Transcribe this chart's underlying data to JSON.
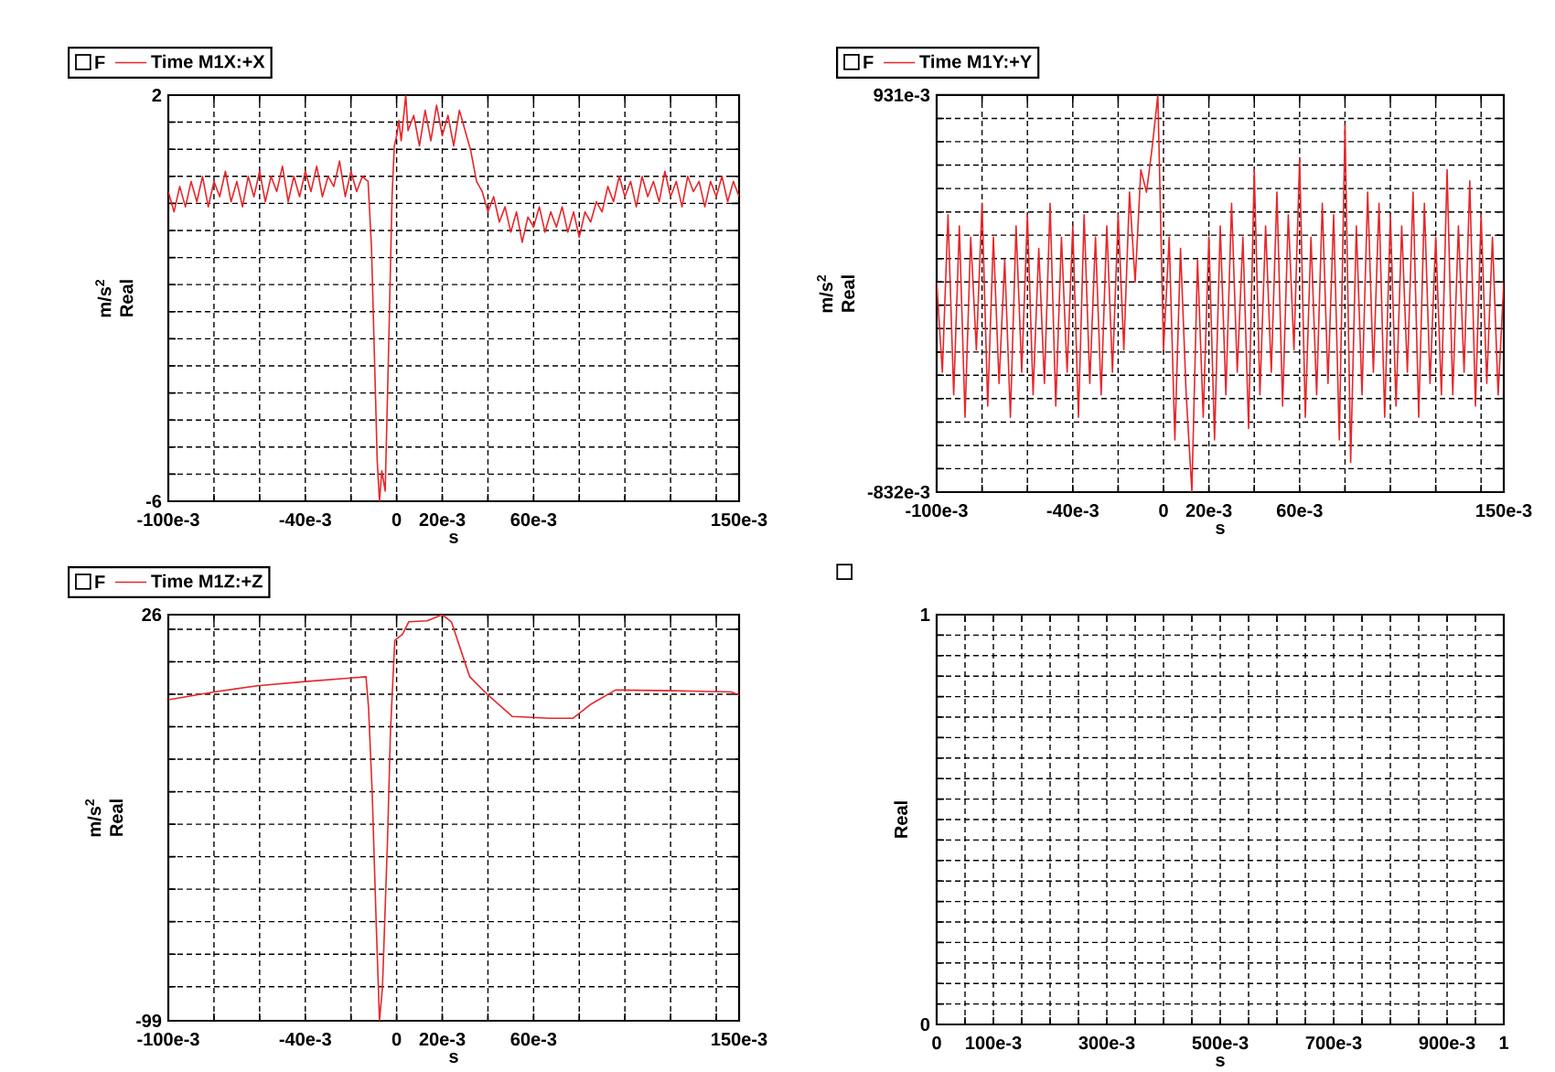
{
  "chart_data": [
    {
      "type": "line",
      "legend_title": "F",
      "xlabel": "s",
      "ylabel": "m/s$^{2}$ Real",
      "grid": true,
      "legend": "top left",
      "x": [
        -0.1,
        -0.0975,
        -0.095,
        -0.0925,
        -0.09,
        -0.0875,
        -0.085,
        -0.0825,
        -0.08,
        -0.0775,
        -0.075,
        -0.0725,
        -0.07,
        -0.0675,
        -0.065,
        -0.0625,
        -0.06,
        -0.0575,
        -0.055,
        -0.0525,
        -0.05,
        -0.0475,
        -0.045,
        -0.0425,
        -0.04,
        -0.0375,
        -0.035,
        -0.0325,
        -0.03,
        -0.0275,
        -0.025,
        -0.0225,
        -0.02,
        -0.0175,
        -0.015,
        -0.0125,
        -0.011,
        -0.0095,
        -0.0085,
        -0.0075,
        -0.0065,
        -0.005,
        -0.0035,
        -0.002,
        -0.001,
        0,
        0.001,
        0.002,
        0.004,
        0.005,
        0.0075,
        0.01,
        0.0125,
        0.015,
        0.0175,
        0.02,
        0.0225,
        0.025,
        0.0275,
        0.03,
        0.0325,
        0.035,
        0.0375,
        0.04,
        0.0425,
        0.045,
        0.0475,
        0.05,
        0.0525,
        0.055,
        0.0575,
        0.06,
        0.0625,
        0.065,
        0.0675,
        0.07,
        0.0725,
        0.075,
        0.0775,
        0.08,
        0.0825,
        0.085,
        0.0875,
        0.09,
        0.0925,
        0.095,
        0.0975,
        0.1,
        0.1025,
        0.105,
        0.1075,
        0.11,
        0.1125,
        0.115,
        0.1175,
        0.12,
        0.1225,
        0.125,
        0.1275,
        0.13,
        0.1325,
        0.135,
        0.1375,
        0.14,
        0.1425,
        0.145,
        0.1475,
        0.15
      ],
      "series": [
        {
          "name": "Time M1X:+X",
          "color": "#e8262a",
          "values": [
            0.1,
            -0.3,
            0.2,
            -0.2,
            0.3,
            -0.1,
            0.4,
            -0.2,
            0.3,
            0.0,
            0.5,
            -0.1,
            0.3,
            -0.2,
            0.4,
            0.0,
            0.5,
            -0.1,
            0.4,
            0.1,
            0.6,
            -0.1,
            0.4,
            0.0,
            0.5,
            0.1,
            0.6,
            0.0,
            0.4,
            0.2,
            0.7,
            0.0,
            0.5,
            0.1,
            0.4,
            0.3,
            -1.0,
            -3.5,
            -5.2,
            -6,
            -5.4,
            -5.8,
            -3.0,
            0.0,
            1.0,
            1.2,
            1.5,
            1.1,
            2,
            1.3,
            1.6,
            1.0,
            1.7,
            1.1,
            1.8,
            1.2,
            1.6,
            1.0,
            1.7,
            1.3,
            0.9,
            0.3,
            0.1,
            -0.3,
            0.0,
            -0.5,
            -0.2,
            -0.7,
            -0.3,
            -0.9,
            -0.4,
            -0.6,
            -0.2,
            -0.7,
            -0.3,
            -0.6,
            -0.2,
            -0.7,
            -0.3,
            -0.8,
            -0.3,
            -0.5,
            -0.1,
            -0.3,
            0.2,
            -0.1,
            0.4,
            0.0,
            0.3,
            -0.2,
            0.4,
            0.0,
            0.3,
            -0.1,
            0.5,
            0.0,
            0.3,
            -0.2,
            0.4,
            0.1,
            0.3,
            -0.2,
            0.3,
            0.0,
            0.4,
            -0.1,
            0.3,
            0.0
          ]
        }
      ],
      "xlim": [
        -0.1,
        0.15
      ],
      "ylim": [
        -6,
        2
      ],
      "xticks": [
        {
          "value": -0.1,
          "label": "-100e-3"
        },
        {
          "value": -0.08,
          "label": null
        },
        {
          "value": -0.06,
          "label": null
        },
        {
          "value": -0.04,
          "label": "-40e-3"
        },
        {
          "value": -0.02,
          "label": null
        },
        0,
        {
          "value": 0.02,
          "label": "20e-3"
        },
        {
          "value": 0.04,
          "label": null
        },
        {
          "value": 0.06,
          "label": "60e-3"
        },
        {
          "value": 0.08,
          "label": null
        },
        {
          "value": 0.1,
          "label": null
        },
        {
          "value": 0.12,
          "label": null
        },
        {
          "value": 0.14,
          "label": null
        },
        {
          "value": 0.15,
          "label": "150e-3"
        }
      ],
      "yticks": [
        -6,
        {
          "value": -5.467,
          "label": null
        },
        {
          "value": -4.933,
          "label": null
        },
        {
          "value": -4.4,
          "label": null
        },
        {
          "value": -3.867,
          "label": null
        },
        {
          "value": -3.333,
          "label": null
        },
        {
          "value": -2.8,
          "label": null
        },
        {
          "value": -2.267,
          "label": null
        },
        {
          "value": -1.733,
          "label": null
        },
        {
          "value": -1.2,
          "label": null
        },
        {
          "value": -0.667,
          "label": null
        },
        {
          "value": -0.133,
          "label": null
        },
        {
          "value": 0.4,
          "label": null
        },
        {
          "value": 0.933,
          "label": null
        },
        {
          "value": 1.467,
          "label": null
        },
        2
      ]
    },
    {
      "type": "line",
      "legend_title": "F",
      "xlabel": "s",
      "ylabel": "m/s$^{2}$ Real",
      "grid": true,
      "legend": "top left",
      "x": [
        -0.1,
        -0.0975,
        -0.095,
        -0.0925,
        -0.09,
        -0.0875,
        -0.085,
        -0.0825,
        -0.08,
        -0.0775,
        -0.075,
        -0.0725,
        -0.07,
        -0.0675,
        -0.065,
        -0.0625,
        -0.06,
        -0.0575,
        -0.055,
        -0.0525,
        -0.05,
        -0.0475,
        -0.045,
        -0.0425,
        -0.04,
        -0.0375,
        -0.035,
        -0.0325,
        -0.03,
        -0.0275,
        -0.025,
        -0.0225,
        -0.02,
        -0.0175,
        -0.015,
        -0.0125,
        -0.01,
        -0.0075,
        -0.005,
        -0.0025,
        0,
        0.0025,
        0.005,
        0.0075,
        0.01,
        0.0125,
        0.015,
        0.0175,
        0.02,
        0.0225,
        0.025,
        0.0275,
        0.03,
        0.0325,
        0.035,
        0.0375,
        0.04,
        0.0425,
        0.045,
        0.0475,
        0.05,
        0.0525,
        0.055,
        0.0575,
        0.06,
        0.0625,
        0.065,
        0.0675,
        0.07,
        0.0725,
        0.075,
        0.0775,
        0.08,
        0.0825,
        0.085,
        0.0875,
        0.09,
        0.0925,
        0.095,
        0.0975,
        0.1,
        0.1025,
        0.105,
        0.1075,
        0.11,
        0.1125,
        0.115,
        0.1175,
        0.12,
        0.1225,
        0.125,
        0.1275,
        0.13,
        0.1325,
        0.135,
        0.1375,
        0.14,
        0.1425,
        0.145,
        0.1475,
        0.15
      ],
      "series": [
        {
          "name": "Time M1Y:+Y",
          "color": "#e8262a",
          "values": [
            0.1,
            -0.3,
            0.4,
            -0.4,
            0.35,
            -0.5,
            0.3,
            -0.2,
            0.45,
            -0.45,
            0.3,
            -0.35,
            0.2,
            -0.5,
            0.35,
            -0.3,
            0.4,
            -0.4,
            0.25,
            -0.35,
            0.45,
            -0.45,
            0.3,
            -0.3,
            0.35,
            -0.5,
            0.4,
            -0.35,
            0.3,
            -0.4,
            0.35,
            -0.3,
            0.4,
            -0.2,
            0.5,
            0.1,
            0.6,
            0.5,
            0.7,
            0.93,
            -0.2,
            0.3,
            -0.6,
            0.25,
            -0.4,
            -0.83,
            0.2,
            -0.5,
            0.3,
            -0.6,
            0.35,
            -0.4,
            0.45,
            -0.3,
            0.3,
            -0.55,
            0.6,
            -0.4,
            0.35,
            -0.3,
            0.5,
            -0.45,
            0.4,
            -0.2,
            0.65,
            -0.5,
            0.3,
            -0.4,
            0.45,
            -0.35,
            0.4,
            -0.6,
            0.8,
            -0.7,
            0.35,
            -0.4,
            0.5,
            -0.3,
            0.45,
            -0.5,
            0.4,
            -0.45,
            0.35,
            -0.3,
            0.5,
            -0.5,
            0.45,
            -0.35,
            0.3,
            -0.4,
            0.6,
            -0.4,
            0.35,
            -0.3,
            0.55,
            -0.45,
            0.4,
            -0.35,
            0.3,
            -0.4,
            0.1
          ]
        }
      ],
      "xlim": [
        -0.1,
        0.15
      ],
      "ylim": [
        -0.832,
        0.931
      ],
      "xticks": [
        {
          "value": -0.1,
          "label": "-100e-3"
        },
        {
          "value": -0.08,
          "label": null
        },
        {
          "value": -0.06,
          "label": null
        },
        {
          "value": -0.04,
          "label": "-40e-3"
        },
        {
          "value": -0.02,
          "label": null
        },
        0,
        {
          "value": 0.02,
          "label": "20e-3"
        },
        {
          "value": 0.04,
          "label": null
        },
        {
          "value": 0.06,
          "label": "60e-3"
        },
        {
          "value": 0.08,
          "label": null
        },
        {
          "value": 0.1,
          "label": null
        },
        {
          "value": 0.12,
          "label": null
        },
        {
          "value": 0.14,
          "label": null
        },
        {
          "value": 0.15,
          "label": "150e-3"
        }
      ],
      "yticks": [
        {
          "value": -0.832,
          "label": "-832e-3"
        },
        {
          "value": -0.728,
          "label": null
        },
        {
          "value": -0.625,
          "label": null
        },
        {
          "value": -0.521,
          "label": null
        },
        {
          "value": -0.417,
          "label": null
        },
        {
          "value": -0.313,
          "label": null
        },
        {
          "value": -0.21,
          "label": null
        },
        {
          "value": -0.106,
          "label": null
        },
        {
          "value": -0.002,
          "label": null
        },
        {
          "value": 0.101,
          "label": null
        },
        {
          "value": 0.205,
          "label": null
        },
        {
          "value": 0.309,
          "label": null
        },
        {
          "value": 0.412,
          "label": null
        },
        {
          "value": 0.516,
          "label": null
        },
        {
          "value": 0.62,
          "label": null
        },
        {
          "value": 0.724,
          "label": null
        },
        {
          "value": 0.827,
          "label": null
        },
        {
          "value": 0.931,
          "label": "931e-3"
        }
      ]
    },
    {
      "type": "line",
      "legend_title": "F",
      "xlabel": "s",
      "ylabel": "m/s$^{2}$ Real",
      "grid": true,
      "legend": "top left",
      "x": [
        -0.1,
        -0.08,
        -0.061,
        -0.04,
        -0.02,
        -0.0134,
        -0.0123,
        -0.0107,
        -0.0089,
        -0.0075,
        -0.0062,
        -0.004,
        -0.0027,
        -0.0008,
        0.0026,
        0.0053,
        0.0133,
        0.02,
        0.024,
        0.032,
        0.04,
        0.0506,
        0.0666,
        0.0772,
        0.0852,
        0.0959,
        0.1199,
        0.1466,
        0.15
      ],
      "series": [
        {
          "name": "Time M1Z:+Z",
          "color": "#e8262a",
          "values": [
            -0.2,
            2.2,
            4.1,
            5.4,
            6.5,
            6.9,
            -2.5,
            -28.7,
            -70,
            -99,
            -88.7,
            -43.7,
            -10,
            18.1,
            20,
            23.8,
            24.1,
            26,
            23.8,
            6.9,
            1.3,
            -5.3,
            -5.9,
            -5.9,
            -1.5,
            2.8,
            2.6,
            2.2,
            1.3
          ]
        }
      ],
      "xlim": [
        -0.1,
        0.15
      ],
      "ylim": [
        -99,
        26
      ],
      "xticks": [
        {
          "value": -0.1,
          "label": "-100e-3"
        },
        {
          "value": -0.08,
          "label": null
        },
        {
          "value": -0.06,
          "label": null
        },
        {
          "value": -0.04,
          "label": "-40e-3"
        },
        {
          "value": -0.02,
          "label": null
        },
        0,
        {
          "value": 0.02,
          "label": "20e-3"
        },
        {
          "value": 0.04,
          "label": null
        },
        {
          "value": 0.06,
          "label": "60e-3"
        },
        {
          "value": 0.08,
          "label": null
        },
        {
          "value": 0.1,
          "label": null
        },
        {
          "value": 0.12,
          "label": null
        },
        {
          "value": 0.14,
          "label": null
        },
        {
          "value": 0.15,
          "label": "150e-3"
        }
      ],
      "yticks": [
        -99,
        {
          "value": -88.5,
          "label": null
        },
        {
          "value": -78.5,
          "label": null
        },
        {
          "value": -68.5,
          "label": null
        },
        {
          "value": -58.5,
          "label": null
        },
        {
          "value": -48.5,
          "label": null
        },
        {
          "value": -38.5,
          "label": null
        },
        {
          "value": -28.5,
          "label": null
        },
        {
          "value": -18.5,
          "label": null
        },
        {
          "value": -8.5,
          "label": null
        },
        {
          "value": 1.5,
          "label": null
        },
        {
          "value": 11.5,
          "label": null
        },
        {
          "value": 21.5,
          "label": null
        },
        26
      ]
    },
    {
      "type": "line",
      "xlabel": "s",
      "ylabel": "Real",
      "grid": true,
      "xlim": [
        0,
        1
      ],
      "ylim": [
        0,
        1
      ],
      "xticks": [
        0,
        {
          "value": 0.05,
          "label": null
        },
        {
          "value": 0.1,
          "label": "100e-3"
        },
        {
          "value": 0.15,
          "label": null
        },
        {
          "value": 0.2,
          "label": null
        },
        {
          "value": 0.25,
          "label": null
        },
        {
          "value": 0.3,
          "label": "300e-3"
        },
        {
          "value": 0.35,
          "label": null
        },
        {
          "value": 0.4,
          "label": null
        },
        {
          "value": 0.45,
          "label": null
        },
        {
          "value": 0.5,
          "label": "500e-3"
        },
        {
          "value": 0.55,
          "label": null
        },
        {
          "value": 0.6,
          "label": null
        },
        {
          "value": 0.65,
          "label": null
        },
        {
          "value": 0.7,
          "label": "700e-3"
        },
        {
          "value": 0.75,
          "label": null
        },
        {
          "value": 0.8,
          "label": null
        },
        {
          "value": 0.85,
          "label": null
        },
        {
          "value": 0.9,
          "label": "900e-3"
        },
        {
          "value": 0.95,
          "label": null
        },
        1
      ],
      "yticks": [
        0,
        {
          "value": 0.05,
          "label": null
        },
        {
          "value": 0.1,
          "label": null
        },
        {
          "value": 0.15,
          "label": null
        },
        {
          "value": 0.2,
          "label": null
        },
        {
          "value": 0.25,
          "label": null
        },
        {
          "value": 0.3,
          "label": null
        },
        {
          "value": 0.35,
          "label": null
        },
        {
          "value": 0.4,
          "label": null
        },
        {
          "value": 0.45,
          "label": null
        },
        {
          "value": 0.5,
          "label": null
        },
        {
          "value": 0.55,
          "label": null
        },
        {
          "value": 0.6,
          "label": null
        },
        {
          "value": 0.65,
          "label": null
        },
        {
          "value": 0.7,
          "label": null
        },
        {
          "value": 0.75,
          "label": null
        },
        {
          "value": 0.8,
          "label": null
        },
        {
          "value": 0.85,
          "label": null
        },
        {
          "value": 0.9,
          "label": null
        },
        {
          "value": 0.95,
          "label": null
        },
        1
      ]
    }
  ]
}
